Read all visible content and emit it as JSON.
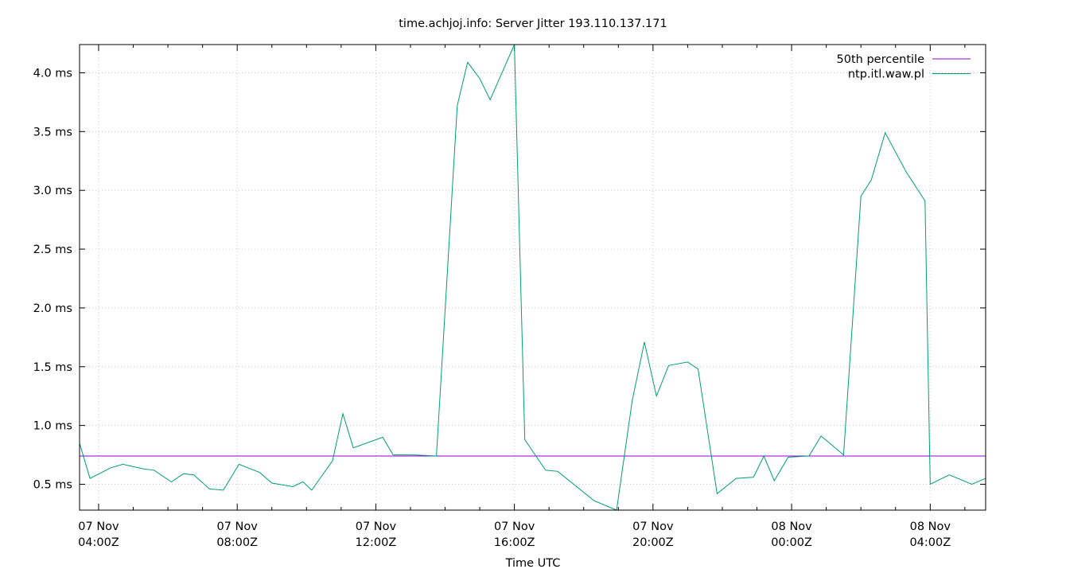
{
  "chart_data": {
    "type": "line",
    "title": "time.achjoj.info: Server Jitter 193.110.137.171",
    "xlabel": "Time UTC",
    "ylabel": "",
    "x_unit": "hours since 07 Nov 00:00Z",
    "xlim": [
      3.45,
      29.6
    ],
    "ylim": [
      0.28,
      4.24
    ],
    "grid": true,
    "legend_position": "top-right",
    "y_ticks": [
      {
        "value": 0.5,
        "label": "0.5 ms"
      },
      {
        "value": 1.0,
        "label": "1.0 ms"
      },
      {
        "value": 1.5,
        "label": "1.5 ms"
      },
      {
        "value": 2.0,
        "label": "2.0 ms"
      },
      {
        "value": 2.5,
        "label": "2.5 ms"
      },
      {
        "value": 3.0,
        "label": "3.0 ms"
      },
      {
        "value": 3.5,
        "label": "3.5 ms"
      },
      {
        "value": 4.0,
        "label": "4.0 ms"
      }
    ],
    "x_ticks": [
      {
        "value": 4,
        "label1": "07 Nov",
        "label2": "04:00Z"
      },
      {
        "value": 8,
        "label1": "07 Nov",
        "label2": "08:00Z"
      },
      {
        "value": 12,
        "label1": "07 Nov",
        "label2": "12:00Z"
      },
      {
        "value": 16,
        "label1": "07 Nov",
        "label2": "16:00Z"
      },
      {
        "value": 20,
        "label1": "07 Nov",
        "label2": "20:00Z"
      },
      {
        "value": 24,
        "label1": "08 Nov",
        "label2": "00:00Z"
      },
      {
        "value": 28,
        "label1": "08 Nov",
        "label2": "04:00Z"
      }
    ],
    "series": [
      {
        "name": "50th percentile",
        "color": "#9400d3",
        "x": [
          3.45,
          29.6
        ],
        "y": [
          0.74,
          0.74
        ]
      },
      {
        "name": "ntp.itl.waw.pl",
        "color": "#009e73",
        "x": [
          3.45,
          3.75,
          4.35,
          4.7,
          5.3,
          5.6,
          6.1,
          6.45,
          6.75,
          7.2,
          7.6,
          8.05,
          8.65,
          9.0,
          9.6,
          9.9,
          10.15,
          10.75,
          11.05,
          11.35,
          12.2,
          12.5,
          13.1,
          13.75,
          14.35,
          14.65,
          15.0,
          15.3,
          16.0,
          16.3,
          16.9,
          17.25,
          18.3,
          18.95,
          19.4,
          19.75,
          20.1,
          20.45,
          21.0,
          21.3,
          21.85,
          22.4,
          22.9,
          23.2,
          23.5,
          23.9,
          24.5,
          24.85,
          25.5,
          26.0,
          26.3,
          26.7,
          27.3,
          27.85,
          28.0,
          28.55,
          29.2,
          29.6
        ],
        "y": [
          0.85,
          0.55,
          0.64,
          0.67,
          0.63,
          0.62,
          0.52,
          0.59,
          0.58,
          0.46,
          0.45,
          0.67,
          0.6,
          0.51,
          0.48,
          0.52,
          0.45,
          0.7,
          1.1,
          0.81,
          0.9,
          0.75,
          0.75,
          0.74,
          3.72,
          4.09,
          3.95,
          3.77,
          4.24,
          0.88,
          0.62,
          0.61,
          0.36,
          0.28,
          1.21,
          1.71,
          1.25,
          1.51,
          1.54,
          1.48,
          0.42,
          0.55,
          0.56,
          0.74,
          0.53,
          0.73,
          0.74,
          0.91,
          0.75,
          2.95,
          3.09,
          3.49,
          3.16,
          2.91,
          0.5,
          0.58,
          0.5,
          0.55
        ]
      }
    ]
  }
}
